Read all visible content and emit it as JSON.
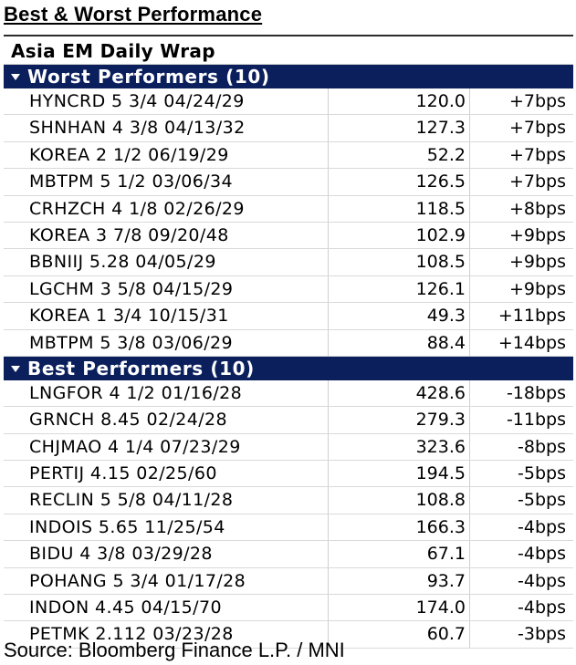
{
  "title": "Best & Worst Performance",
  "wrap_title": "Asia EM Daily Wrap",
  "groups": [
    {
      "label": "Worst Performers (10)",
      "rows": [
        {
          "name": "HYNCRD 5 3/4 04/24/29",
          "price": "120.0",
          "change": "+7bps"
        },
        {
          "name": "SHNHAN 4 3/8 04/13/32",
          "price": "127.3",
          "change": "+7bps"
        },
        {
          "name": "KOREA 2 1/2 06/19/29",
          "price": "52.2",
          "change": "+7bps"
        },
        {
          "name": "MBTPM 5 1/2 03/06/34",
          "price": "126.5",
          "change": "+7bps"
        },
        {
          "name": "CRHZCH 4 1/8 02/26/29",
          "price": "118.5",
          "change": "+8bps"
        },
        {
          "name": "KOREA 3 7/8 09/20/48",
          "price": "102.9",
          "change": "+9bps"
        },
        {
          "name": "BBNIIJ 5.28 04/05/29",
          "price": "108.5",
          "change": "+9bps"
        },
        {
          "name": "LGCHM 3 5/8 04/15/29",
          "price": "126.1",
          "change": "+9bps"
        },
        {
          "name": "KOREA 1 3/4 10/15/31",
          "price": "49.3",
          "change": "+11bps"
        },
        {
          "name": "MBTPM 5 3/8 03/06/29",
          "price": "88.4",
          "change": "+14bps"
        }
      ]
    },
    {
      "label": "Best Performers (10)",
      "rows": [
        {
          "name": "LNGFOR 4 1/2 01/16/28",
          "price": "428.6",
          "change": "-18bps"
        },
        {
          "name": "GRNCH 8.45 02/24/28",
          "price": "279.3",
          "change": "-11bps"
        },
        {
          "name": "CHJMAO 4 1/4 07/23/29",
          "price": "323.6",
          "change": "-8bps"
        },
        {
          "name": "PERTIJ 4.15 02/25/60",
          "price": "194.5",
          "change": "-5bps"
        },
        {
          "name": "RECLIN 5 5/8 04/11/28",
          "price": "108.8",
          "change": "-5bps"
        },
        {
          "name": "INDOIS 5.65 11/25/54",
          "price": "166.3",
          "change": "-4bps"
        },
        {
          "name": "BIDU 4 3/8 03/29/28",
          "price": "67.1",
          "change": "-4bps"
        },
        {
          "name": "POHANG 5 3/4 01/17/28",
          "price": "93.7",
          "change": "-4bps"
        },
        {
          "name": "INDON 4.45 04/15/70",
          "price": "174.0",
          "change": "-4bps"
        },
        {
          "name": "PETMK 2.112 03/23/28",
          "price": "60.7",
          "change": "-3bps"
        }
      ]
    }
  ],
  "source": "Source: Bloomberg Finance L.P. / MNI",
  "colors": {
    "group_header_bg": "#0a1f5c",
    "group_header_text": "#ffffff"
  }
}
